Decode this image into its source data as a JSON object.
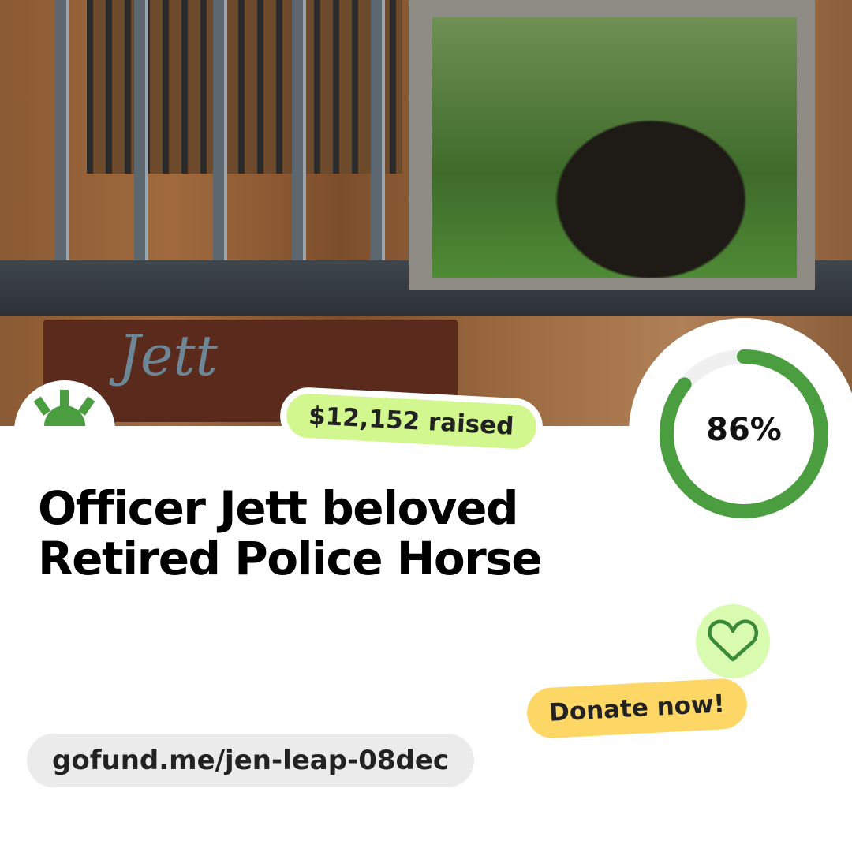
{
  "photo": {
    "sign_text": "Jett"
  },
  "campaign": {
    "raised": "$12,152 raised",
    "progress_percent": 86,
    "progress_label": "86%",
    "title_line1": "Officer Jett beloved",
    "title_line2": "Retired Police Horse"
  },
  "cta": {
    "donate_label": "Donate now!"
  },
  "url": "gofund.me/jen-leap-08dec",
  "colors": {
    "ring": "#4a9e3f",
    "ring_track": "#f0f0f0",
    "raised_bg": "#d2f78f",
    "donate_bg": "#fdd766",
    "heart_bg": "#d8fbb0",
    "logo": "#4a9e3f"
  }
}
